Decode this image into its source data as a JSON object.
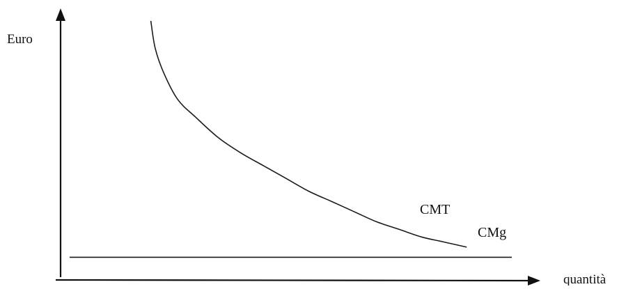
{
  "chart_data": {
    "type": "line",
    "title": "",
    "xlabel": "quantità",
    "ylabel": "Euro",
    "grid": false,
    "xlim": [
      0,
      100
    ],
    "ylim": [
      0,
      100
    ],
    "series": [
      {
        "name": "CMT",
        "x": [
          20,
          21,
          23,
          26,
          30,
          35,
          40,
          45,
          50,
          55,
          60,
          65,
          70,
          75,
          80,
          85,
          90
        ],
        "y": [
          100,
          89,
          79,
          69,
          62,
          54,
          48,
          43,
          38,
          33,
          29,
          25,
          21,
          18,
          15,
          13,
          11
        ],
        "color": "#1a1a1a"
      },
      {
        "name": "CMg",
        "x": [
          2,
          100
        ],
        "y": [
          7,
          7
        ],
        "color": "#1a1a1a"
      }
    ]
  }
}
